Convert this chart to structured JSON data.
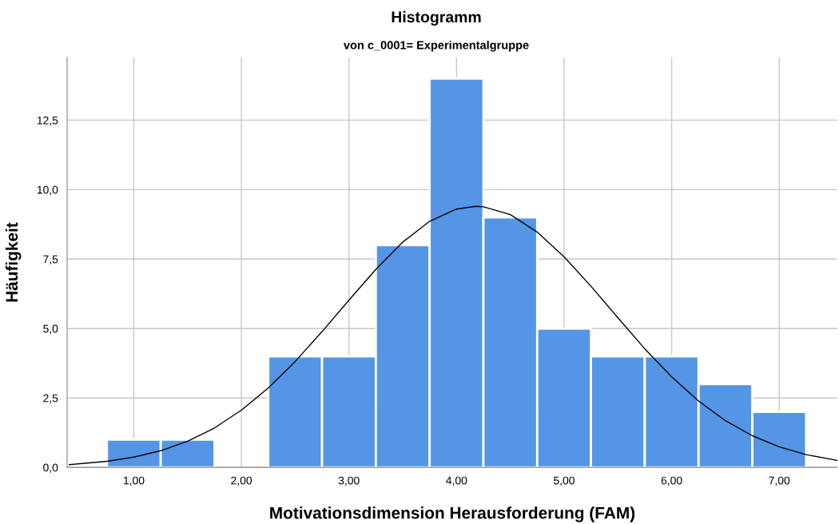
{
  "chart_data": {
    "type": "histogram",
    "title": "Histogramm",
    "subtitle": "von c_0001= Experimentalgruppe",
    "xlabel": "Motivationsdimension Herausforderung (FAM)",
    "ylabel": "Häufigkeit",
    "bins": [
      0.75,
      1.25,
      1.75,
      2.25,
      2.75,
      3.25,
      3.75,
      4.25,
      4.75,
      5.25,
      5.75,
      6.25,
      6.75,
      7.25
    ],
    "series": [
      {
        "color": "#5595e5",
        "values": [
          1,
          1,
          0,
          4,
          4,
          8,
          14,
          9,
          5,
          4,
          4,
          3,
          2
        ]
      },
      {
        "type": "line",
        "color": "#000000",
        "x": [
          0.4,
          0.75,
          1,
          1.25,
          1.5,
          1.75,
          2,
          2.25,
          2.5,
          2.75,
          3,
          3.25,
          3.5,
          3.75,
          4,
          4.18,
          4.25,
          4.5,
          4.75,
          5,
          5.25,
          5.5,
          5.75,
          6,
          6.25,
          6.5,
          6.75,
          7,
          7.25,
          7.5,
          7.54
        ],
        "values": [
          0.1,
          0.22,
          0.37,
          0.6,
          0.94,
          1.42,
          2.06,
          2.86,
          3.81,
          4.89,
          6.02,
          7.13,
          8.11,
          8.86,
          9.3,
          9.4,
          9.38,
          9.1,
          8.47,
          7.58,
          6.52,
          5.39,
          4.27,
          3.26,
          2.39,
          1.68,
          1.14,
          0.74,
          0.46,
          0.28,
          0.25
        ]
      }
    ],
    "xlim": [
      0.38,
      7.54
    ],
    "ylim": [
      0,
      14.75
    ],
    "xticks": [
      {
        "value": 1,
        "label": "1,00"
      },
      {
        "value": 2,
        "label": "2,00"
      },
      {
        "value": 3,
        "label": "3,00"
      },
      {
        "value": 4,
        "label": "4,00"
      },
      {
        "value": 5,
        "label": "5,00"
      },
      {
        "value": 6,
        "label": "6,00"
      },
      {
        "value": 7,
        "label": "7,00"
      }
    ],
    "yticks": [
      {
        "value": 0,
        "label": "0,0"
      },
      {
        "value": 2.5,
        "label": "2,5"
      },
      {
        "value": 5,
        "label": "5,0"
      },
      {
        "value": 7.5,
        "label": "7,5"
      },
      {
        "value": 10,
        "label": "10,0"
      },
      {
        "value": 12.5,
        "label": "12,5"
      }
    ],
    "grid": true,
    "legend": false
  }
}
